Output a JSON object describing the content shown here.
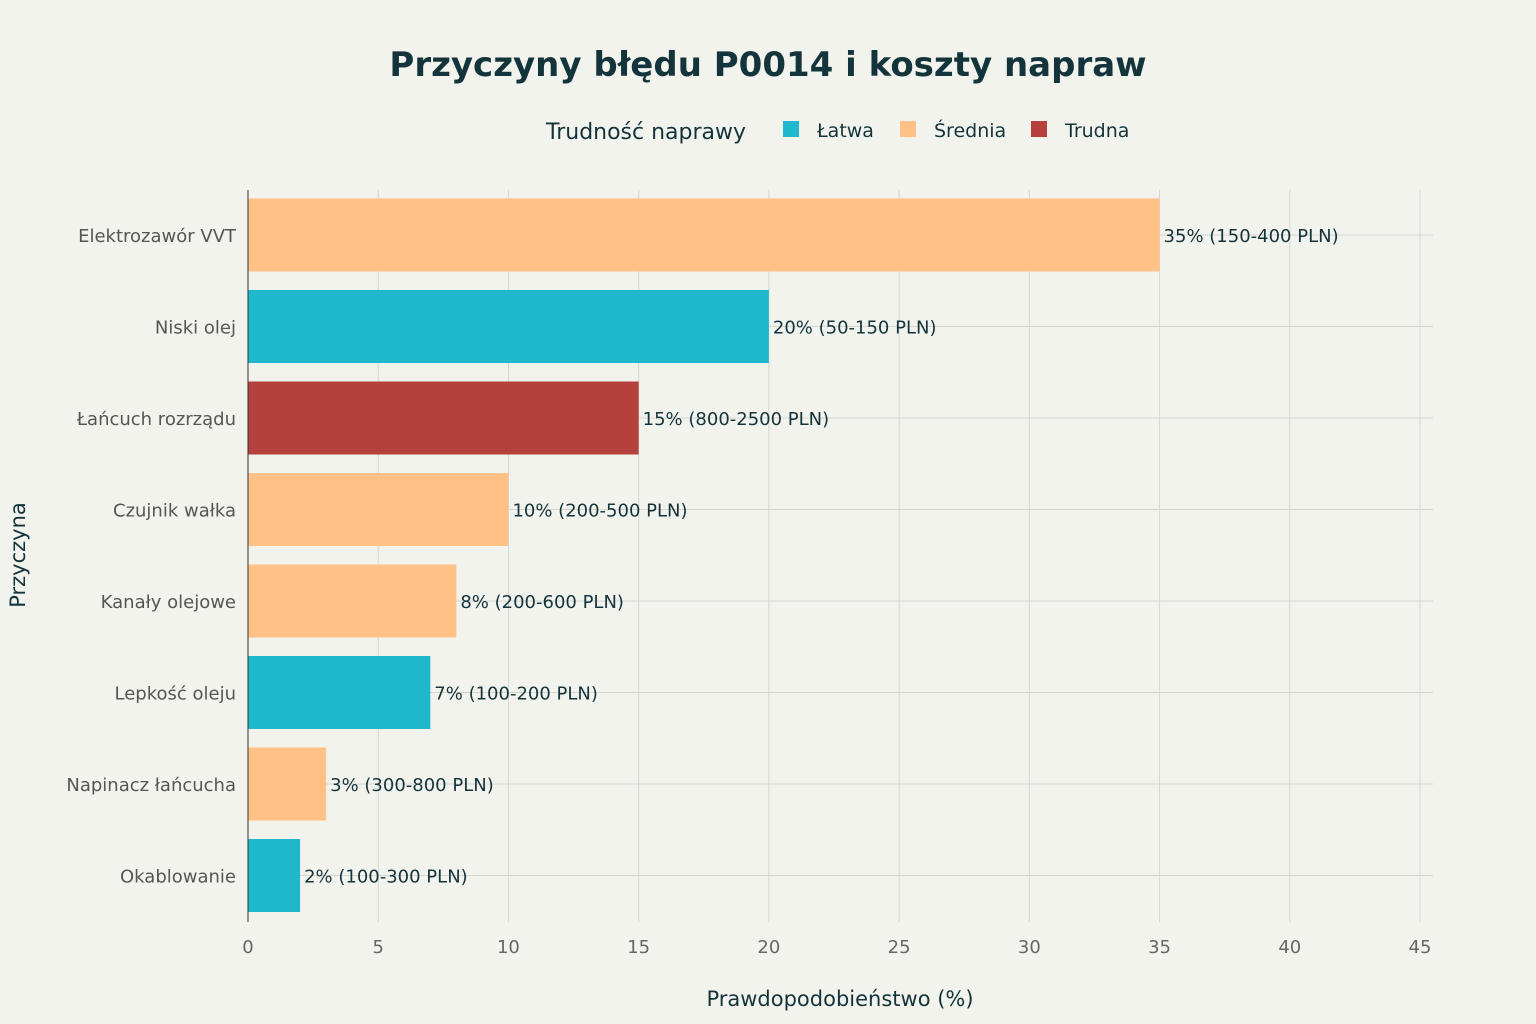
{
  "chart_data": {
    "type": "bar",
    "orientation": "horizontal",
    "title": "Przyczyny błędu P0014 i koszty napraw",
    "xlabel": "Prawdopodobieństwo (%)",
    "ylabel": "Przyczyna",
    "xlim": [
      0,
      45
    ],
    "xticks": [
      0,
      5,
      10,
      15,
      20,
      25,
      30,
      35,
      40,
      45
    ],
    "grid": true,
    "legend": {
      "title": "Trudność naprawy",
      "position": "top",
      "entries": [
        {
          "key": "easy",
          "label": "Łatwa",
          "color": "#1fb8cd"
        },
        {
          "key": "medium",
          "label": "Średnia",
          "color": "#ffc185"
        },
        {
          "key": "hard",
          "label": "Trudna",
          "color": "#b4413c"
        }
      ]
    },
    "bars": [
      {
        "category": "Elektrozawór VVT",
        "value": 35,
        "difficulty": "medium",
        "label": "35% (150-400 PLN)"
      },
      {
        "category": "Niski olej",
        "value": 20,
        "difficulty": "easy",
        "label": "20% (50-150 PLN)"
      },
      {
        "category": "Łańcuch rozrządu",
        "value": 15,
        "difficulty": "hard",
        "label": "15% (800-2500 PLN)"
      },
      {
        "category": "Czujnik wałka",
        "value": 10,
        "difficulty": "medium",
        "label": "10% (200-500 PLN)"
      },
      {
        "category": "Kanały olejowe",
        "value": 8,
        "difficulty": "medium",
        "label": "8% (200-600 PLN)"
      },
      {
        "category": "Lepkość oleju",
        "value": 7,
        "difficulty": "easy",
        "label": "7% (100-200 PLN)"
      },
      {
        "category": "Napinacz łańcucha",
        "value": 3,
        "difficulty": "medium",
        "label": "3% (300-800 PLN)"
      },
      {
        "category": "Okablowanie",
        "value": 2,
        "difficulty": "easy",
        "label": "2% (100-300 PLN)"
      }
    ]
  }
}
